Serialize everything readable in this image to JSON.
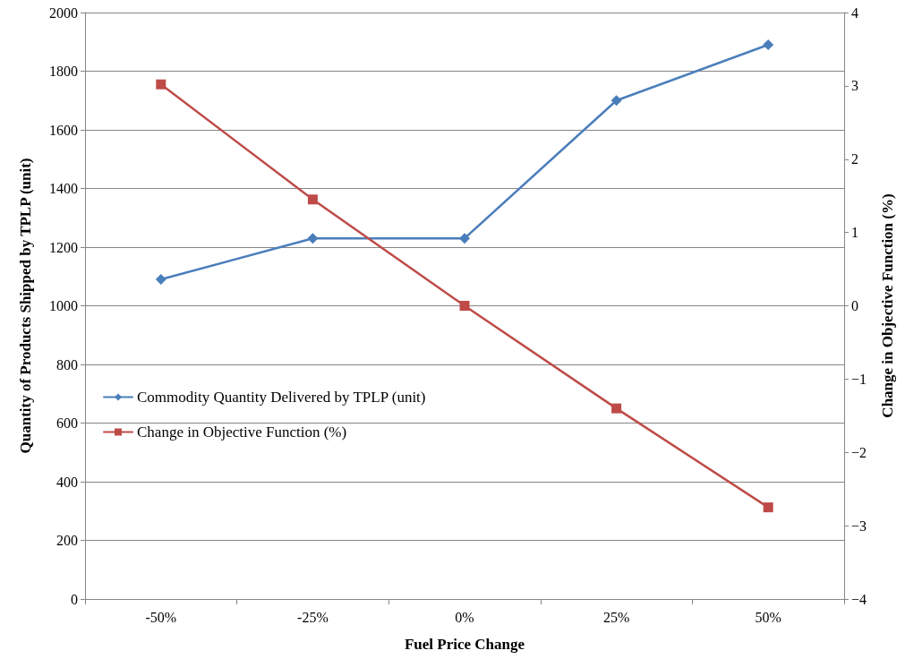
{
  "chart_data": {
    "type": "line",
    "categories": [
      "-50%",
      "-25%",
      "0%",
      "25%",
      "50%"
    ],
    "xlabel": "Fuel Price Change",
    "ylabel": "Quantity of Products Shipped by TPLP (unit)",
    "y2label": "Change in Objective Function (%)",
    "series": [
      {
        "name": "Commodity Quantity Delivered by TPLP (unit)",
        "color": "#4a7ebb",
        "values": [
          1090,
          1230,
          1230,
          1700,
          1890
        ],
        "marker": "diamond"
      },
      {
        "name": "Change in Objective Function (%)",
        "color": "#be4b48",
        "values": [
          3.02,
          1.45,
          0,
          -1.4,
          -2.75
        ],
        "axis": "y2",
        "marker": "square"
      }
    ],
    "ylim": [
      0,
      2000
    ],
    "yticks": [
      0,
      200,
      400,
      600,
      800,
      1000,
      1200,
      1400,
      1600,
      1800,
      2000
    ],
    "y2lim": [
      -4,
      4
    ],
    "y2ticks": [
      -4,
      -3,
      -2,
      -1,
      0,
      1,
      2,
      3,
      4
    ],
    "grid": "y",
    "legend": "left",
    "line_style": "solid"
  }
}
